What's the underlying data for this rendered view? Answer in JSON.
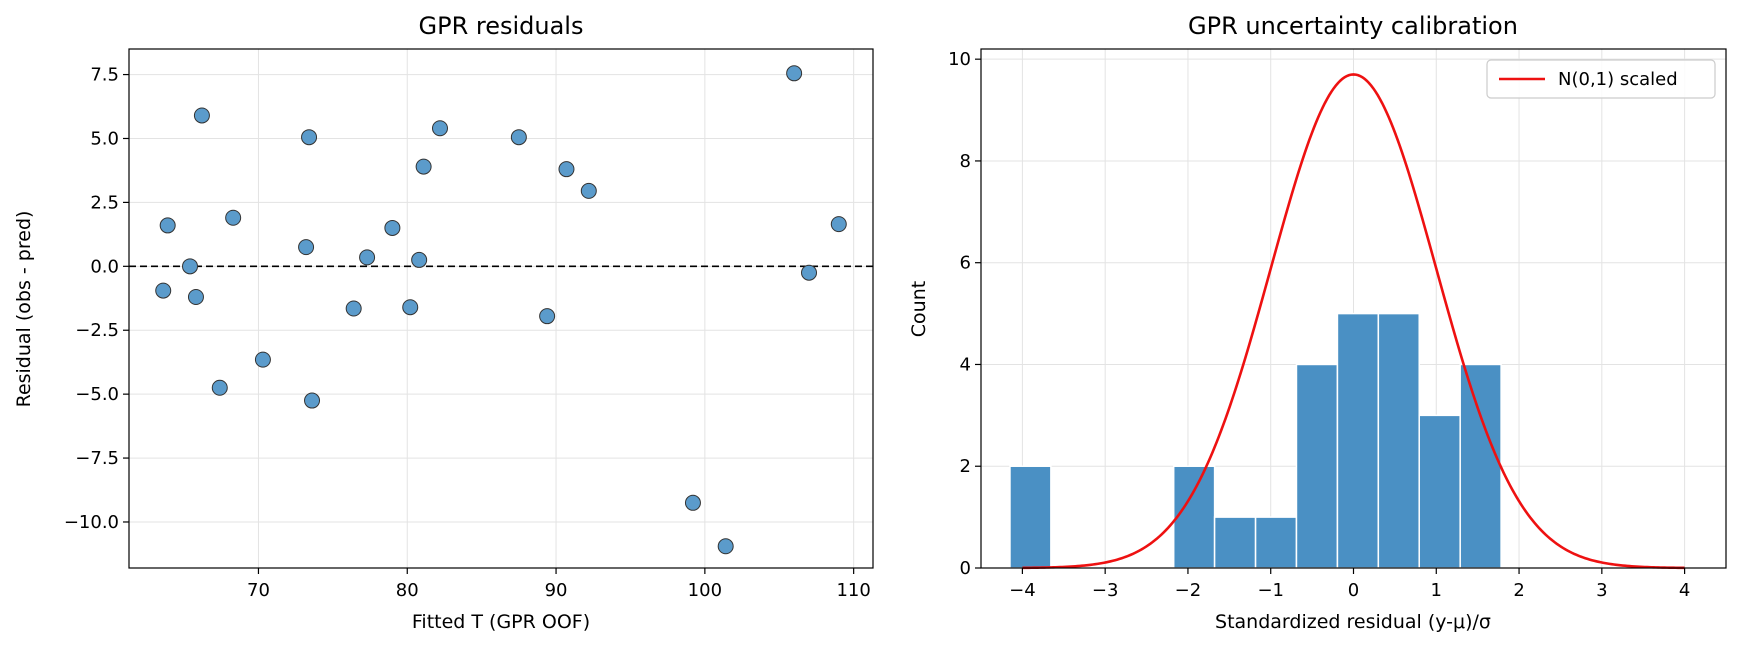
{
  "chart_data": [
    {
      "type": "scatter",
      "title": "GPR residuals",
      "xlabel": "Fitted T (GPR OOF)",
      "ylabel": "Residual (obs - pred)",
      "xlim": [
        61.3,
        111.3
      ],
      "ylim": [
        -11.8,
        8.5
      ],
      "xticks": [
        70,
        80,
        90,
        100,
        110
      ],
      "xtick_labels": [
        "70",
        "80",
        "90",
        "100",
        "110"
      ],
      "yticks": [
        7.5,
        5.0,
        2.5,
        0.0,
        -2.5,
        -5.0,
        -7.5,
        -10.0
      ],
      "ytick_labels": [
        "7.5",
        "5.0",
        "2.5",
        "0.0",
        "−2.5",
        "−5.0",
        "−7.5",
        "−10.0"
      ],
      "grid": true,
      "reference_line": {
        "y": 0,
        "style": "dashed",
        "color": "#000000"
      },
      "point_color": "#5b9bcb",
      "points": [
        {
          "x": 63.6,
          "y": -0.95
        },
        {
          "x": 63.9,
          "y": 1.6
        },
        {
          "x": 65.4,
          "y": 0.0
        },
        {
          "x": 65.8,
          "y": -1.2
        },
        {
          "x": 66.2,
          "y": 5.9
        },
        {
          "x": 67.4,
          "y": -4.75
        },
        {
          "x": 68.3,
          "y": 1.9
        },
        {
          "x": 70.3,
          "y": -3.65
        },
        {
          "x": 73.2,
          "y": 0.75
        },
        {
          "x": 73.4,
          "y": 5.05
        },
        {
          "x": 73.6,
          "y": -5.25
        },
        {
          "x": 76.4,
          "y": -1.65
        },
        {
          "x": 77.3,
          "y": 0.35
        },
        {
          "x": 79.0,
          "y": 1.5
        },
        {
          "x": 80.2,
          "y": -1.6
        },
        {
          "x": 80.8,
          "y": 0.25
        },
        {
          "x": 81.1,
          "y": 3.9
        },
        {
          "x": 82.2,
          "y": 5.4
        },
        {
          "x": 87.5,
          "y": 5.05
        },
        {
          "x": 89.4,
          "y": -1.95
        },
        {
          "x": 90.7,
          "y": 3.8
        },
        {
          "x": 92.2,
          "y": 2.95
        },
        {
          "x": 99.2,
          "y": -9.25
        },
        {
          "x": 101.4,
          "y": -10.95
        },
        {
          "x": 106.0,
          "y": 7.55
        },
        {
          "x": 107.0,
          "y": -0.25
        },
        {
          "x": 109.0,
          "y": 1.65
        }
      ]
    },
    {
      "type": "bar",
      "subtype": "histogram",
      "title": "GPR uncertainty calibration",
      "xlabel": "Standardized residual (y-μ)/σ",
      "ylabel": "Count",
      "xlim": [
        -4.5,
        4.5
      ],
      "ylim": [
        0,
        10.2
      ],
      "xticks": [
        -4,
        -3,
        -2,
        -1,
        0,
        1,
        2,
        3,
        4
      ],
      "xtick_labels": [
        "−4",
        "−3",
        "−2",
        "−1",
        "0",
        "1",
        "2",
        "3",
        "4"
      ],
      "yticks": [
        0,
        2,
        4,
        6,
        8,
        10
      ],
      "ytick_labels": [
        "0",
        "2",
        "4",
        "6",
        "8",
        "10"
      ],
      "grid": true,
      "bar_color": "#4a90c4",
      "bin_edges": [
        -4.15,
        -3.656,
        -3.161,
        -2.667,
        -2.172,
        -1.678,
        -1.183,
        -0.689,
        -0.194,
        0.3,
        0.794,
        1.289,
        1.783
      ],
      "counts": [
        2,
        0,
        0,
        0,
        2,
        1,
        1,
        4,
        5,
        5,
        3,
        4
      ],
      "series": [
        {
          "name": "N(0,1) scaled",
          "type": "line",
          "color": "#ee1111",
          "peak": 9.7,
          "mean": 0,
          "sd": 1,
          "x_range": [
            -4,
            4
          ]
        }
      ],
      "legend": {
        "position": "top-right",
        "entries": [
          "N(0,1) scaled"
        ]
      }
    }
  ]
}
